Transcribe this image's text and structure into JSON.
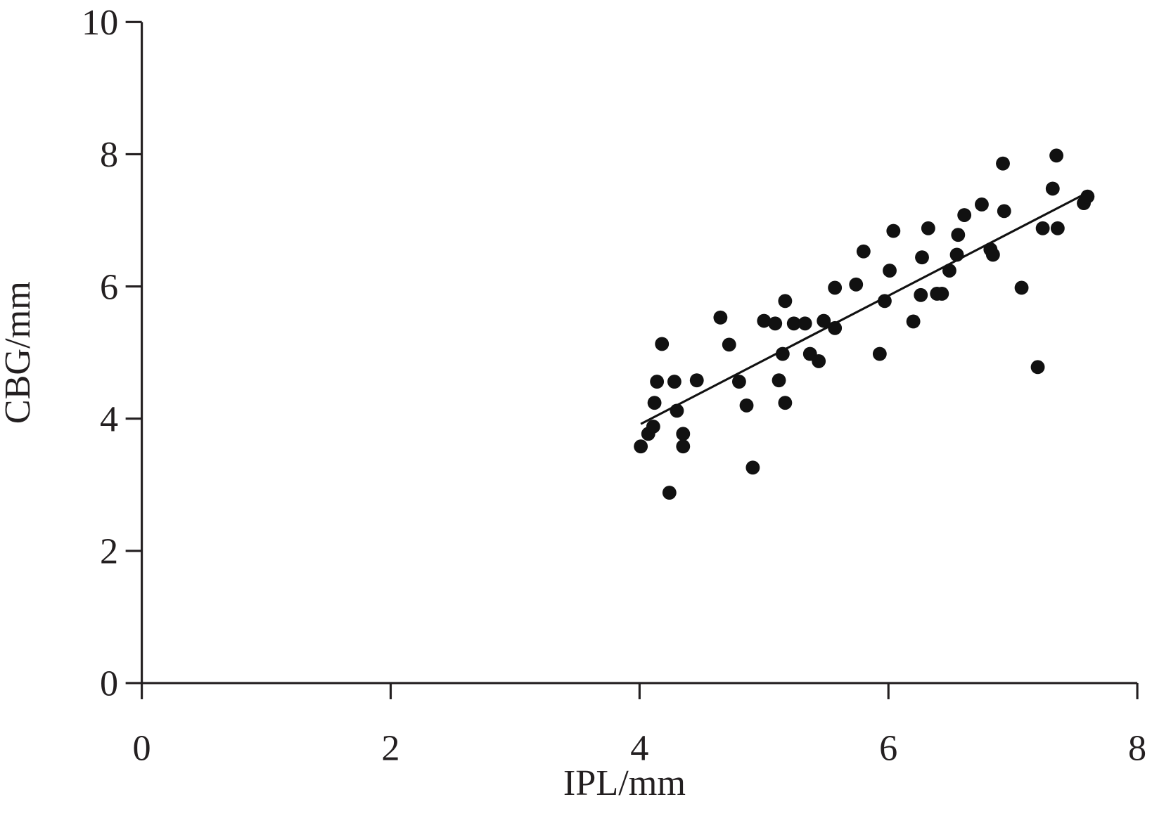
{
  "chart_data": {
    "type": "scatter",
    "x_label": "IPL/mm",
    "y_label": "CBG/mm",
    "xlim": [
      0,
      8
    ],
    "xticks": [
      0,
      2,
      4,
      6,
      8
    ],
    "ylim": [
      0,
      10
    ],
    "yticks": [
      0,
      2,
      4,
      6,
      8,
      10
    ],
    "color": "#111111",
    "x": [
      4.01,
      4.07,
      4.11,
      4.12,
      4.14,
      4.18,
      4.24,
      4.28,
      4.3,
      4.35,
      4.35,
      4.46,
      4.65,
      4.72,
      4.8,
      4.86,
      4.91,
      5.0,
      5.09,
      5.12,
      5.15,
      5.17,
      5.17,
      5.24,
      5.33,
      5.37,
      5.44,
      5.48,
      5.57,
      5.57,
      5.74,
      5.8,
      5.93,
      5.97,
      6.01,
      6.04,
      6.2,
      6.26,
      6.27,
      6.32,
      6.39,
      6.43,
      6.49,
      6.55,
      6.56,
      6.61,
      6.75,
      6.82,
      6.84,
      6.92,
      6.93,
      7.07,
      7.2,
      7.24,
      7.32,
      7.35,
      7.36,
      7.57,
      7.6
    ],
    "values": [
      3.58,
      3.77,
      3.88,
      4.24,
      4.56,
      5.13,
      2.88,
      4.56,
      4.12,
      3.77,
      3.58,
      4.58,
      5.53,
      5.12,
      4.56,
      4.2,
      3.26,
      5.48,
      5.44,
      4.58,
      4.98,
      5.78,
      4.24,
      5.44,
      5.44,
      4.98,
      4.87,
      5.48,
      5.98,
      5.37,
      6.03,
      6.53,
      4.98,
      5.78,
      6.24,
      6.84,
      5.47,
      5.87,
      6.44,
      6.88,
      5.89,
      5.89,
      6.24,
      6.48,
      6.78,
      7.08,
      7.24,
      6.56,
      6.48,
      7.86,
      7.14,
      5.98,
      4.78,
      6.88,
      7.48,
      7.98,
      6.88,
      7.26,
      7.36
    ],
    "trend": {
      "x": [
        4.01,
        7.6
      ],
      "values": [
        3.92,
        7.42
      ]
    }
  }
}
